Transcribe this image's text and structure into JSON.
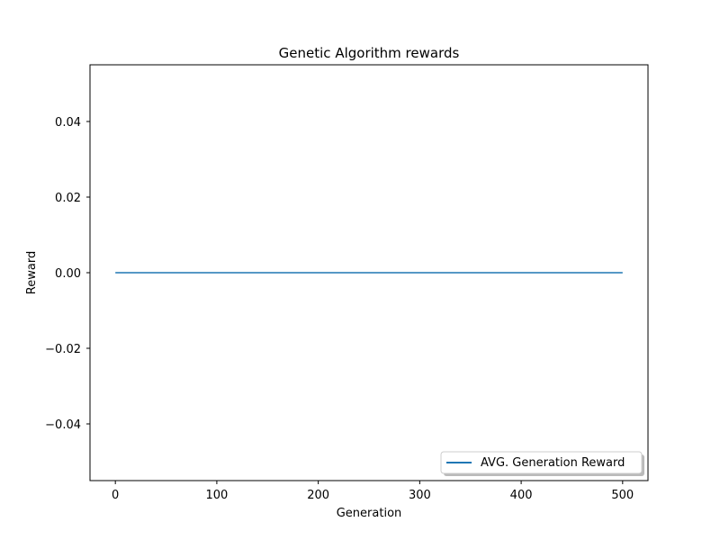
{
  "chart_data": {
    "type": "line",
    "title": "Genetic Algorithm rewards",
    "xlabel": "Generation",
    "ylabel": "Reward",
    "xlim": [
      -25,
      525
    ],
    "ylim": [
      -0.055,
      0.055
    ],
    "xticks": [
      0,
      100,
      200,
      300,
      400,
      500
    ],
    "xtick_labels": [
      "0",
      "100",
      "200",
      "300",
      "400",
      "500"
    ],
    "yticks": [
      -0.04,
      -0.02,
      0.0,
      0.02,
      0.04
    ],
    "ytick_labels": [
      "−0.04",
      "−0.02",
      "0.00",
      "0.02",
      "0.04"
    ],
    "grid": false,
    "legend_position": "lower-right",
    "series": [
      {
        "name": "AVG. Generation Reward",
        "color": "#1f77b4",
        "x": [
          0,
          500
        ],
        "y": [
          0.0,
          0.0
        ]
      }
    ]
  }
}
